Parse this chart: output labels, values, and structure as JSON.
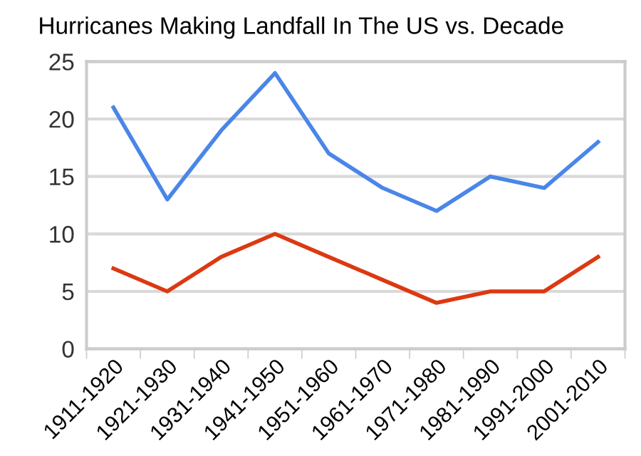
{
  "chart_data": {
    "type": "line",
    "title": "Hurricanes Making Landfall In The US vs. Decade",
    "categories": [
      "1911-1920",
      "1921-1930",
      "1931-1940",
      "1941-1950",
      "1951-1960",
      "1961-1970",
      "1971-1980",
      "1981-1990",
      "1991-2000",
      "2001-2010"
    ],
    "series": [
      {
        "color": "#4a86e8",
        "values": [
          21,
          13,
          19,
          24,
          17,
          14,
          12,
          15,
          14,
          18
        ]
      },
      {
        "color": "#dc3912",
        "values": [
          7,
          5,
          8,
          10,
          8,
          6,
          4,
          5,
          5,
          8
        ]
      }
    ],
    "ylim": [
      0,
      25
    ],
    "yticks": [
      0,
      5,
      10,
      15,
      20,
      25
    ],
    "grid": "y",
    "legend": false,
    "marker": "none",
    "line_style": "solid"
  }
}
